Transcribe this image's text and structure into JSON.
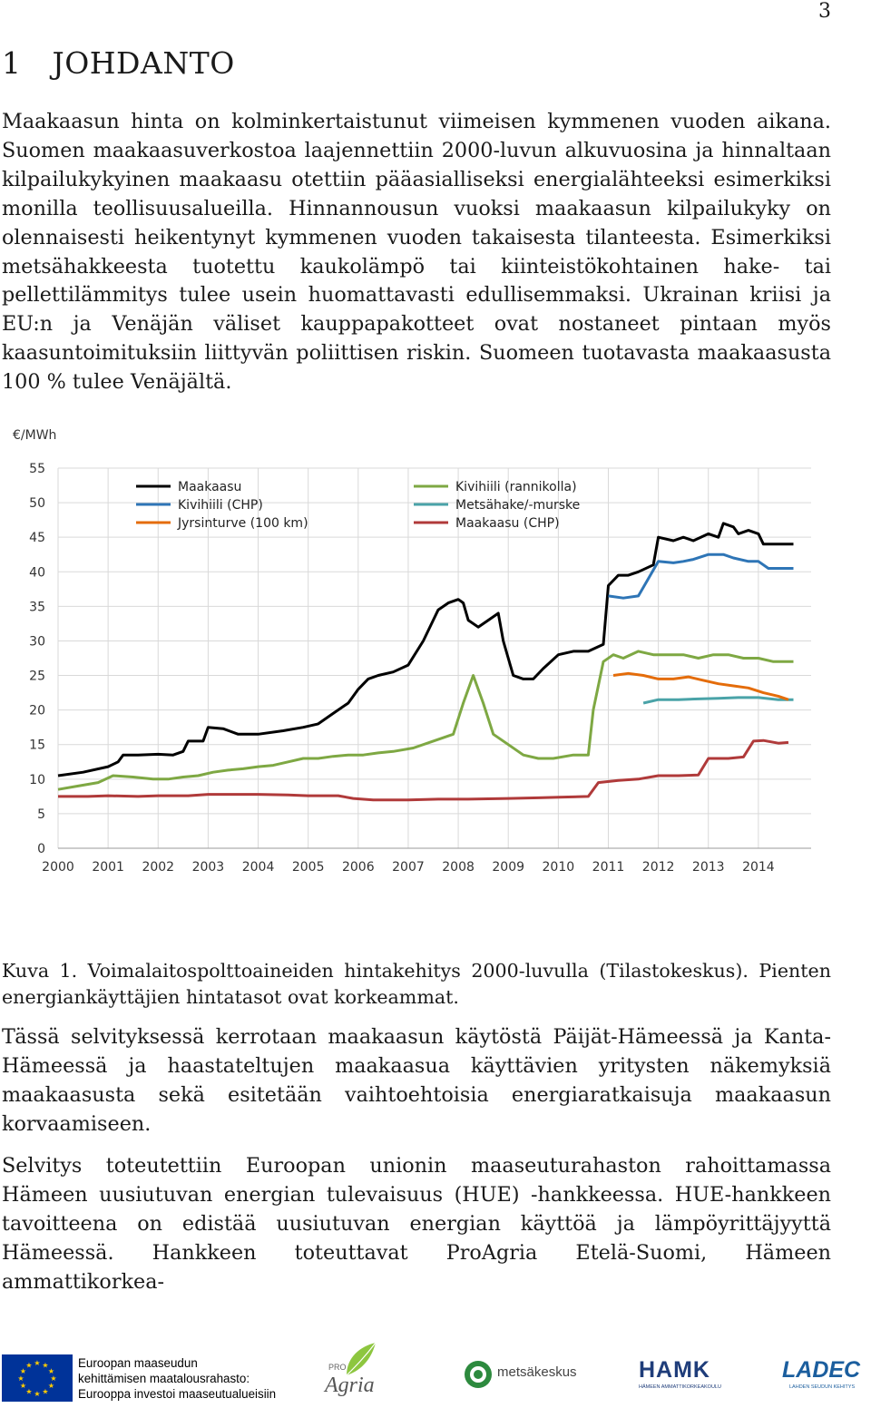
{
  "page_number": "3",
  "heading": {
    "number": "1",
    "title": "JOHDANTO"
  },
  "paragraphs": {
    "p1": "Maakaasun hinta on kolminkertaistunut viimeisen kymmenen vuoden aikana. Suomen maakaasuverkostoa laajennettiin 2000-luvun alkuvuosina ja hinnaltaan kilpailukykyinen maakaasu otettiin pääasialliseksi energialähteeksi esimerkiksi monilla teollisuusalueilla. Hinnannousun vuoksi maakaasun kilpailukyky on olennaisesti heikentynyt kymmenen vuoden takaisesta tilanteesta. Esimerkiksi metsähakkeesta tuotettu kaukolämpö tai kiinteistökohtainen hake- tai pellettilämmitys tulee usein huomattavasti edullisemmaksi. Ukrainan kriisi ja EU:n ja Venäjän väliset kauppapakotteet ovat nostaneet pintaan myös kaasuntoimituksiin liittyvän poliittisen riskin. Suomeen tuotavasta maakaasusta 100 % tulee Venäjältä.",
    "p2": "Tässä selvityksessä kerrotaan maakaasun käytöstä Päijät-Hämeessä ja Kanta-Hämeessä ja haastateltujen maakaasua käyttävien yritysten näkemyksiä maakaasusta sekä esitetään vaihtoehtoisia energiaratkaisuja maakaasun korvaamiseen.",
    "p3": "Selvitys toteutettiin Euroopan unionin maaseuturahaston rahoittamassa Hämeen uusiutuvan energian tulevaisuus (HUE) -hankkeessa. HUE-hankkeen tavoitteena on edistää uusiutuvan energian käyttöä ja lämpöyrittäjyyttä Hämeessä. Hankkeen toteuttavat ProAgria Etelä-Suomi, Hämeen ammattikorkea-"
  },
  "caption": "Kuva 1. Voimalaitospolttoaineiden hintakehitys 2000-luvulla (Tilastokeskus). Pienten energiankäyttäjien hintatasot ovat korkeammat.",
  "chart_data": {
    "type": "line",
    "ylabel": "€/MWh",
    "ylim": [
      0,
      55
    ],
    "yticks": [
      0,
      5,
      10,
      15,
      20,
      25,
      30,
      35,
      40,
      45,
      50,
      55
    ],
    "xlim": [
      2000,
      2014.8
    ],
    "xticks": [
      2000,
      2001,
      2002,
      2003,
      2004,
      2005,
      2006,
      2007,
      2008,
      2009,
      2010,
      2011,
      2012,
      2013,
      2014
    ],
    "grid": true,
    "legend_position": "top-left",
    "series": [
      {
        "name": "Maakaasu",
        "color": "#000000",
        "points": [
          [
            2000,
            10.5
          ],
          [
            2000.5,
            11
          ],
          [
            2001,
            11.8
          ],
          [
            2001.2,
            12.5
          ],
          [
            2001.3,
            13.5
          ],
          [
            2001.6,
            13.5
          ],
          [
            2002,
            13.6
          ],
          [
            2002.3,
            13.5
          ],
          [
            2002.5,
            14
          ],
          [
            2002.6,
            15.5
          ],
          [
            2002.9,
            15.5
          ],
          [
            2003,
            17.5
          ],
          [
            2003.3,
            17.3
          ],
          [
            2003.6,
            16.5
          ],
          [
            2004,
            16.5
          ],
          [
            2004.5,
            17
          ],
          [
            2004.9,
            17.5
          ],
          [
            2005.2,
            18
          ],
          [
            2005.5,
            19.5
          ],
          [
            2005.8,
            21
          ],
          [
            2006,
            23
          ],
          [
            2006.2,
            24.5
          ],
          [
            2006.4,
            25
          ],
          [
            2006.7,
            25.5
          ],
          [
            2007,
            26.5
          ],
          [
            2007.3,
            30
          ],
          [
            2007.5,
            33
          ],
          [
            2007.6,
            34.5
          ],
          [
            2007.8,
            35.5
          ],
          [
            2008,
            36
          ],
          [
            2008.1,
            35.5
          ],
          [
            2008.2,
            33
          ],
          [
            2008.4,
            32
          ],
          [
            2008.6,
            33
          ],
          [
            2008.8,
            34
          ],
          [
            2008.9,
            30
          ],
          [
            2009.1,
            25
          ],
          [
            2009.3,
            24.5
          ],
          [
            2009.5,
            24.5
          ],
          [
            2009.7,
            26
          ],
          [
            2010,
            28
          ],
          [
            2010.3,
            28.5
          ],
          [
            2010.6,
            28.5
          ],
          [
            2010.9,
            29.5
          ],
          [
            2011,
            38
          ],
          [
            2011.2,
            39.5
          ],
          [
            2011.4,
            39.5
          ],
          [
            2011.6,
            40
          ],
          [
            2011.9,
            41
          ],
          [
            2012,
            45
          ],
          [
            2012.3,
            44.5
          ],
          [
            2012.5,
            45
          ],
          [
            2012.7,
            44.5
          ],
          [
            2013,
            45.5
          ],
          [
            2013.2,
            45
          ],
          [
            2013.3,
            47
          ],
          [
            2013.5,
            46.5
          ],
          [
            2013.6,
            45.5
          ],
          [
            2013.8,
            46
          ],
          [
            2014,
            45.5
          ],
          [
            2014.1,
            44
          ],
          [
            2014.5,
            44
          ],
          [
            2014.7,
            44
          ]
        ]
      },
      {
        "name": "Kivihiili (CHP)",
        "color": "#2e75b6",
        "points": [
          [
            2011,
            36.5
          ],
          [
            2011.3,
            36.2
          ],
          [
            2011.6,
            36.5
          ],
          [
            2012,
            41.5
          ],
          [
            2012.3,
            41.3
          ],
          [
            2012.5,
            41.5
          ],
          [
            2012.7,
            41.8
          ],
          [
            2013,
            42.5
          ],
          [
            2013.3,
            42.5
          ],
          [
            2013.5,
            42
          ],
          [
            2013.8,
            41.5
          ],
          [
            2014,
            41.5
          ],
          [
            2014.2,
            40.5
          ],
          [
            2014.7,
            40.5
          ]
        ]
      },
      {
        "name": "Kivihiili (rannikolla)",
        "color": "#7ea843",
        "points": [
          [
            2000,
            8.5
          ],
          [
            2000.4,
            9
          ],
          [
            2000.8,
            9.5
          ],
          [
            2001.1,
            10.5
          ],
          [
            2001.5,
            10.3
          ],
          [
            2001.9,
            10
          ],
          [
            2002.2,
            10
          ],
          [
            2002.5,
            10.3
          ],
          [
            2002.8,
            10.5
          ],
          [
            2003.1,
            11
          ],
          [
            2003.4,
            11.3
          ],
          [
            2003.7,
            11.5
          ],
          [
            2004,
            11.8
          ],
          [
            2004.3,
            12
          ],
          [
            2004.6,
            12.5
          ],
          [
            2004.9,
            13
          ],
          [
            2005.2,
            13
          ],
          [
            2005.5,
            13.3
          ],
          [
            2005.8,
            13.5
          ],
          [
            2006.1,
            13.5
          ],
          [
            2006.4,
            13.8
          ],
          [
            2006.7,
            14
          ],
          [
            2007.1,
            14.5
          ],
          [
            2007.5,
            15.5
          ],
          [
            2007.9,
            16.5
          ],
          [
            2008.1,
            21
          ],
          [
            2008.3,
            25
          ],
          [
            2008.5,
            21
          ],
          [
            2008.7,
            16.5
          ],
          [
            2009,
            15
          ],
          [
            2009.3,
            13.5
          ],
          [
            2009.6,
            13
          ],
          [
            2009.9,
            13
          ],
          [
            2010.3,
            13.5
          ],
          [
            2010.6,
            13.5
          ],
          [
            2010.7,
            20
          ],
          [
            2010.9,
            27
          ],
          [
            2011.1,
            28
          ],
          [
            2011.3,
            27.5
          ],
          [
            2011.6,
            28.5
          ],
          [
            2011.9,
            28
          ],
          [
            2012.2,
            28
          ],
          [
            2012.5,
            28
          ],
          [
            2012.8,
            27.5
          ],
          [
            2013.1,
            28
          ],
          [
            2013.4,
            28
          ],
          [
            2013.7,
            27.5
          ],
          [
            2014,
            27.5
          ],
          [
            2014.3,
            27
          ],
          [
            2014.7,
            27
          ]
        ]
      },
      {
        "name": "Metsähake/-murske",
        "color": "#4aa3a8",
        "points": [
          [
            2011.7,
            21
          ],
          [
            2012,
            21.5
          ],
          [
            2012.4,
            21.5
          ],
          [
            2012.8,
            21.6
          ],
          [
            2013.2,
            21.7
          ],
          [
            2013.6,
            21.8
          ],
          [
            2014,
            21.8
          ],
          [
            2014.4,
            21.5
          ],
          [
            2014.7,
            21.5
          ]
        ]
      },
      {
        "name": "Jyrsinturve (100 km)",
        "color": "#e46c0a",
        "points": [
          [
            2011.1,
            25
          ],
          [
            2011.4,
            25.3
          ],
          [
            2011.7,
            25
          ],
          [
            2012,
            24.5
          ],
          [
            2012.3,
            24.5
          ],
          [
            2012.6,
            24.8
          ],
          [
            2012.9,
            24.3
          ],
          [
            2013.2,
            23.8
          ],
          [
            2013.5,
            23.5
          ],
          [
            2013.8,
            23.2
          ],
          [
            2014.1,
            22.5
          ],
          [
            2014.4,
            22
          ],
          [
            2014.6,
            21.5
          ]
        ]
      },
      {
        "name": "Maakaasu (CHP)",
        "color": "#b03a3a",
        "points": [
          [
            2000,
            7.5
          ],
          [
            2000.6,
            7.5
          ],
          [
            2001,
            7.6
          ],
          [
            2001.6,
            7.5
          ],
          [
            2002,
            7.6
          ],
          [
            2002.6,
            7.6
          ],
          [
            2003,
            7.8
          ],
          [
            2003.6,
            7.8
          ],
          [
            2004,
            7.8
          ],
          [
            2004.6,
            7.7
          ],
          [
            2005,
            7.6
          ],
          [
            2005.6,
            7.6
          ],
          [
            2005.9,
            7.2
          ],
          [
            2006.3,
            7.0
          ],
          [
            2007,
            7.0
          ],
          [
            2007.6,
            7.1
          ],
          [
            2008.2,
            7.1
          ],
          [
            2009,
            7.2
          ],
          [
            2009.6,
            7.3
          ],
          [
            2010.1,
            7.4
          ],
          [
            2010.6,
            7.5
          ],
          [
            2010.8,
            9.5
          ],
          [
            2011.2,
            9.8
          ],
          [
            2011.6,
            10
          ],
          [
            2012,
            10.5
          ],
          [
            2012.4,
            10.5
          ],
          [
            2012.8,
            10.6
          ],
          [
            2013,
            13
          ],
          [
            2013.4,
            13
          ],
          [
            2013.7,
            13.2
          ],
          [
            2013.9,
            15.5
          ],
          [
            2014.1,
            15.6
          ],
          [
            2014.4,
            15.2
          ],
          [
            2014.6,
            15.3
          ]
        ]
      }
    ]
  },
  "footer": {
    "eu_line1": "Euroopan maaseudun",
    "eu_line2": "kehittämisen maatalousrahasto:",
    "eu_line3": "Eurooppa investoi maaseutualueisiin",
    "proagria_small": "PRO",
    "proagria": "Agria",
    "metsakeskus": "metsäkeskus",
    "hamk": "HAMK",
    "hamk_sub": "HÄMEEN AMMATTIKORKEAKOULU",
    "ladec": "LADEC",
    "ladec_sub": "LAHDEN SEUDUN KEHITYS"
  }
}
